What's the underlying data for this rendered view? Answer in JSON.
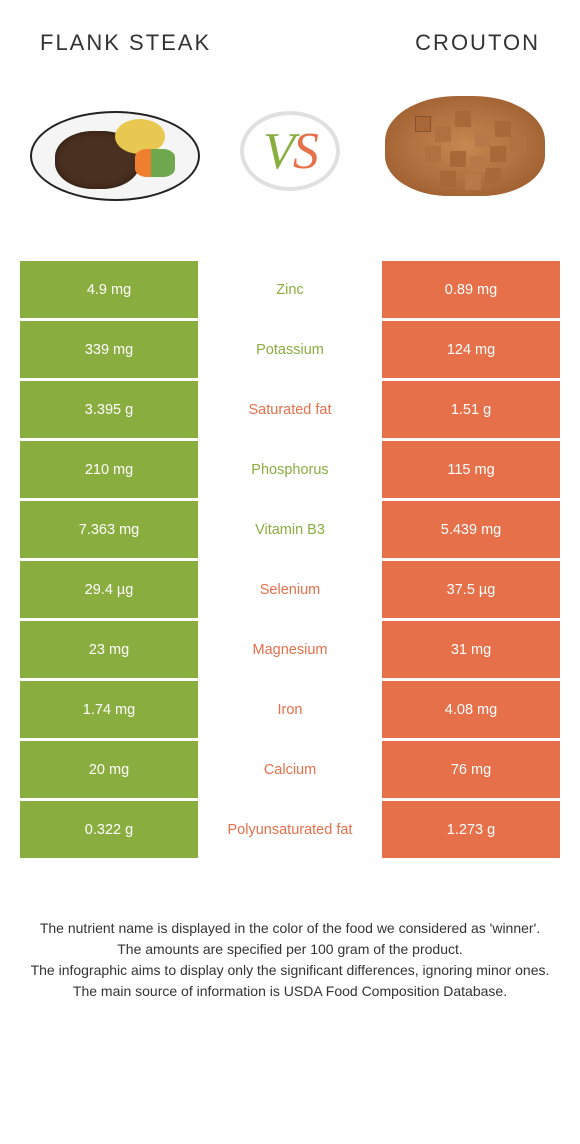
{
  "header": {
    "left_title": "FLANK STEAK",
    "right_title": "CROUTON",
    "vs_v": "V",
    "vs_s": "S"
  },
  "colors": {
    "green": "#8aad3f",
    "orange": "#e6704a",
    "background": "#ffffff",
    "text": "#333333"
  },
  "nutrients": [
    {
      "name": "Zinc",
      "left": "4.9 mg",
      "right": "0.89 mg",
      "winner": "green"
    },
    {
      "name": "Potassium",
      "left": "339 mg",
      "right": "124 mg",
      "winner": "green"
    },
    {
      "name": "Saturated fat",
      "left": "3.395 g",
      "right": "1.51 g",
      "winner": "orange"
    },
    {
      "name": "Phosphorus",
      "left": "210 mg",
      "right": "115 mg",
      "winner": "green"
    },
    {
      "name": "Vitamin B3",
      "left": "7.363 mg",
      "right": "5.439 mg",
      "winner": "green"
    },
    {
      "name": "Selenium",
      "left": "29.4 µg",
      "right": "37.5 µg",
      "winner": "orange"
    },
    {
      "name": "Magnesium",
      "left": "23 mg",
      "right": "31 mg",
      "winner": "orange"
    },
    {
      "name": "Iron",
      "left": "1.74 mg",
      "right": "4.08 mg",
      "winner": "orange"
    },
    {
      "name": "Calcium",
      "left": "20 mg",
      "right": "76 mg",
      "winner": "orange"
    },
    {
      "name": "Polyunsaturated fat",
      "left": "0.322 g",
      "right": "1.273 g",
      "winner": "orange"
    }
  ],
  "footer": {
    "line1": "The nutrient name is displayed in the color of the food we considered as 'winner'.",
    "line2": "The amounts are specified per 100 gram of the product.",
    "line3": "The infographic aims to display only the significant differences, ignoring minor ones.",
    "line4": "The main source of information is USDA Food Composition Database."
  }
}
